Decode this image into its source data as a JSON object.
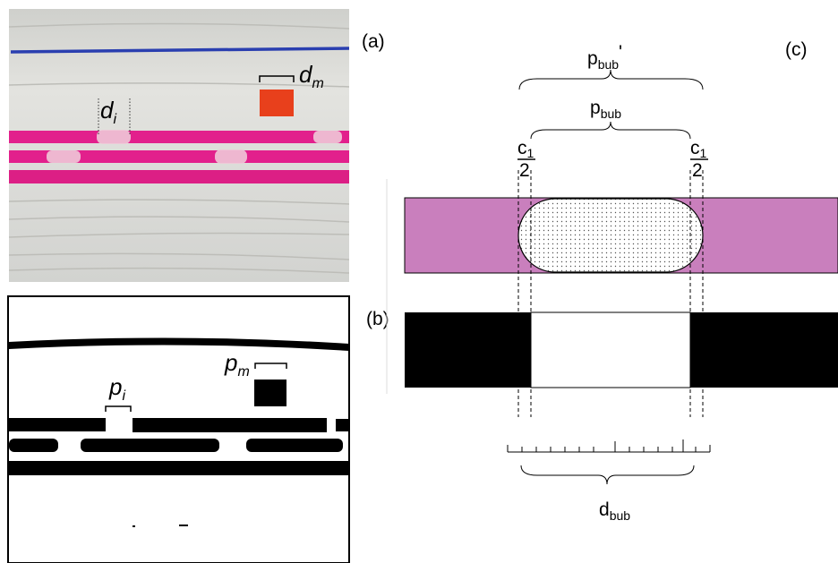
{
  "panels": {
    "a": "(a)",
    "b": "(b)",
    "c": "(c)"
  },
  "photo": {
    "d_m": {
      "base": "d",
      "sub": "m"
    },
    "d_i": {
      "base": "d",
      "sub": "i"
    }
  },
  "binary": {
    "p_m": {
      "base": "p",
      "sub": "m"
    },
    "p_i": {
      "base": "p",
      "sub": "i"
    }
  },
  "diagram": {
    "p_bub_prime": {
      "base": "p",
      "sub": "bub",
      "suffix": "'"
    },
    "p_bub": {
      "base": "p",
      "sub": "bub"
    },
    "c1_half": {
      "numerator": "c",
      "numerator_sub": "1",
      "denominator": "2"
    },
    "d_bub": {
      "base": "d",
      "sub": "bub"
    }
  }
}
